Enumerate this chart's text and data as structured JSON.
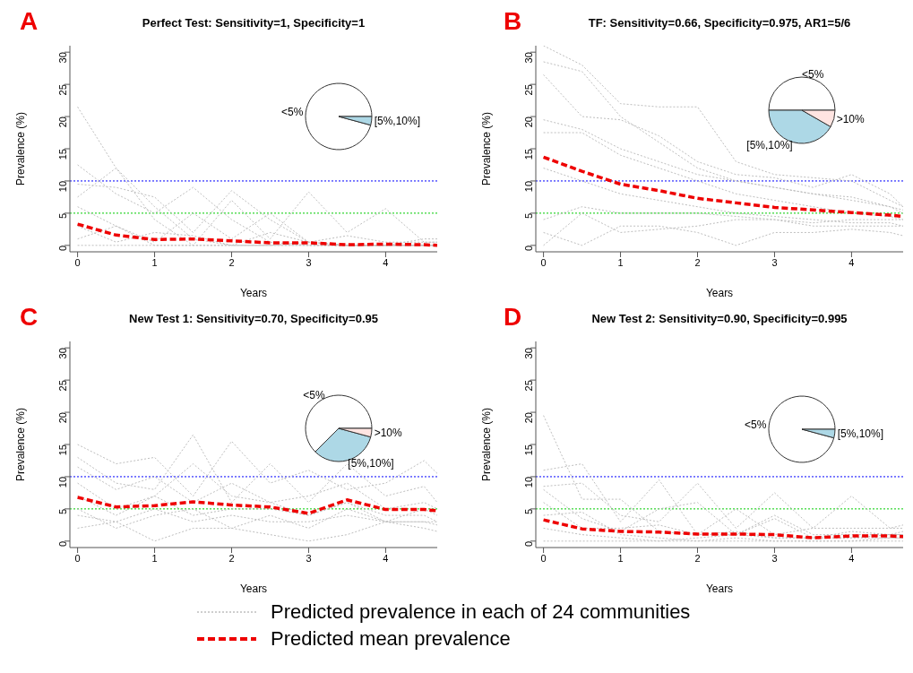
{
  "chart_data": [
    {
      "type": "line",
      "title": "Perfect Test: Sensitivity=1, Specificity=1",
      "annotations": [
        "A"
      ],
      "xlabel": "Years",
      "ylabel": "Prevalence (%)",
      "x": [
        0,
        0.5,
        1,
        1.5,
        2,
        2.5,
        3,
        3.5,
        4,
        4.5,
        4.67
      ],
      "xlim": [
        -0.1,
        4.67
      ],
      "xticks": [
        0,
        1,
        2,
        3,
        4
      ],
      "ylim": [
        -1,
        31
      ],
      "yticks": [
        0,
        5,
        10,
        15,
        20,
        25,
        30
      ],
      "marker": "none",
      "ref_lines": [
        {
          "axis": "y",
          "value": 10,
          "color": "#0000ff",
          "line_style": "dotted"
        },
        {
          "axis": "y",
          "value": 5,
          "color": "#00cc00",
          "line_style": "dotted"
        }
      ],
      "series": [
        {
          "color": "#bebebe",
          "line_style": "dotted",
          "values": [
            21.5,
            12,
            6,
            1,
            0,
            0,
            0,
            0,
            0,
            0,
            0
          ]
        },
        {
          "color": "#bebebe",
          "line_style": "dotted",
          "values": [
            12.5,
            8,
            5,
            9,
            4,
            0.5,
            0,
            0,
            0,
            0,
            0
          ]
        },
        {
          "color": "#bebebe",
          "line_style": "dotted",
          "values": [
            9.5,
            9,
            7.5,
            2,
            8.5,
            4,
            0.5,
            0,
            0,
            0,
            0
          ]
        },
        {
          "color": "#bebebe",
          "line_style": "dotted",
          "values": [
            7.5,
            12,
            4,
            0,
            7,
            1,
            8.3,
            2,
            5.7,
            0.5,
            0.5
          ]
        },
        {
          "color": "#bebebe",
          "line_style": "dotted",
          "values": [
            6,
            3,
            0.5,
            5,
            1,
            5,
            0.5,
            0,
            0,
            1,
            1
          ]
        },
        {
          "color": "#bebebe",
          "line_style": "dotted",
          "values": [
            1,
            3,
            0,
            0,
            0,
            2,
            0.5,
            1.5,
            0.5,
            0.5,
            0.5
          ]
        },
        {
          "color": "#bebebe",
          "line_style": "dotted",
          "values": [
            0,
            0,
            0,
            0,
            0,
            0,
            0,
            0,
            0,
            0,
            0
          ]
        },
        {
          "color": "#bebebe",
          "line_style": "dotted",
          "values": [
            3,
            0.5,
            2,
            1.5,
            0,
            0,
            0.5,
            0,
            0,
            0,
            0
          ]
        },
        {
          "color": "#ee0000",
          "line_style": "dashed",
          "values": [
            3.3,
            1.6,
            0.9,
            1,
            0.7,
            0.4,
            0.4,
            0.1,
            0.2,
            0.1,
            0
          ]
        }
      ]
    },
    {
      "type": "pie",
      "categories": [
        "<5%",
        "[5%,10%]"
      ],
      "values": [
        95.8,
        4.2
      ],
      "colors": [
        "#ffffff",
        "#add8e6"
      ]
    },
    {
      "type": "line",
      "title": "TF: Sensitivity=0.66, Specificity=0.975, AR1=5/6",
      "annotations": [
        "B"
      ],
      "xlabel": "Years",
      "ylabel": "Prevalence (%)",
      "x": [
        0,
        0.5,
        1,
        1.5,
        2,
        2.5,
        3,
        3.5,
        4,
        4.5,
        4.67
      ],
      "xlim": [
        -0.1,
        4.67
      ],
      "xticks": [
        0,
        1,
        2,
        3,
        4
      ],
      "ylim": [
        -1,
        31
      ],
      "yticks": [
        0,
        5,
        10,
        15,
        20,
        25,
        30
      ],
      "marker": "none",
      "ref_lines": [
        {
          "axis": "y",
          "value": 10,
          "color": "#0000ff",
          "line_style": "dotted"
        },
        {
          "axis": "y",
          "value": 5,
          "color": "#00cc00",
          "line_style": "dotted"
        }
      ],
      "series": [
        {
          "color": "#bebebe",
          "line_style": "dotted",
          "values": [
            31,
            28,
            22,
            21.5,
            21.5,
            13,
            11,
            10.5,
            10,
            7,
            6
          ]
        },
        {
          "color": "#bebebe",
          "line_style": "dotted",
          "values": [
            28.5,
            27,
            20,
            16,
            12,
            10,
            9,
            8,
            7.5,
            6,
            5.5
          ]
        },
        {
          "color": "#bebebe",
          "line_style": "dotted",
          "values": [
            26.5,
            20,
            19.5,
            17,
            13,
            11,
            10.5,
            9,
            11,
            8,
            6
          ]
        },
        {
          "color": "#bebebe",
          "line_style": "dotted",
          "values": [
            19.5,
            18,
            15,
            13,
            11,
            10,
            9,
            8,
            7,
            6,
            5
          ]
        },
        {
          "color": "#bebebe",
          "line_style": "dotted",
          "values": [
            17.5,
            17.5,
            14,
            12,
            10,
            8,
            7,
            6,
            5,
            4.5,
            4
          ]
        },
        {
          "color": "#bebebe",
          "line_style": "dotted",
          "values": [
            12,
            10,
            8,
            7,
            6,
            5,
            4.5,
            4,
            3.5,
            3.5,
            3
          ]
        },
        {
          "color": "#bebebe",
          "line_style": "dotted",
          "values": [
            4,
            6,
            5,
            5,
            5,
            4.5,
            4,
            3,
            3,
            3,
            3
          ]
        },
        {
          "color": "#bebebe",
          "line_style": "dotted",
          "values": [
            2,
            0,
            3,
            3,
            2,
            0,
            2,
            2,
            2.5,
            2,
            1.5
          ]
        },
        {
          "color": "#bebebe",
          "line_style": "dotted",
          "values": [
            0,
            5,
            2,
            2.5,
            3,
            4,
            4,
            3.5,
            4,
            4,
            4
          ]
        },
        {
          "color": "#ee0000",
          "line_style": "dashed",
          "values": [
            13.7,
            11.5,
            9.5,
            8.5,
            7.3,
            6.6,
            5.9,
            5.5,
            5.1,
            4.7,
            4.5
          ]
        }
      ]
    },
    {
      "type": "pie",
      "categories": [
        "<5%",
        "[5%,10%]",
        ">10%"
      ],
      "values": [
        50,
        41.7,
        8.3
      ],
      "colors": [
        "#ffffff",
        "#add8e6",
        "#ffe4e1"
      ]
    },
    {
      "type": "line",
      "title": "New Test 1: Sensitivity=0.70, Specificity=0.95",
      "annotations": [
        "C"
      ],
      "xlabel": "Years",
      "ylabel": "Prevalence (%)",
      "x": [
        0,
        0.5,
        1,
        1.5,
        2,
        2.5,
        3,
        3.5,
        4,
        4.5,
        4.67
      ],
      "xlim": [
        -0.1,
        4.67
      ],
      "xticks": [
        0,
        1,
        2,
        3,
        4
      ],
      "ylim": [
        -1,
        31
      ],
      "yticks": [
        0,
        5,
        10,
        15,
        20,
        25,
        30
      ],
      "marker": "none",
      "ref_lines": [
        {
          "axis": "y",
          "value": 10,
          "color": "#0000ff",
          "line_style": "dotted"
        },
        {
          "axis": "y",
          "value": 5,
          "color": "#00cc00",
          "line_style": "dotted"
        }
      ],
      "series": [
        {
          "color": "#bebebe",
          "line_style": "dotted",
          "values": [
            15,
            12,
            13,
            7,
            15.5,
            9,
            11,
            8,
            9,
            12.5,
            10.5
          ]
        },
        {
          "color": "#bebebe",
          "line_style": "dotted",
          "values": [
            13,
            9,
            8,
            16.5,
            6,
            12,
            6,
            12,
            7,
            8.5,
            6
          ]
        },
        {
          "color": "#bebebe",
          "line_style": "dotted",
          "values": [
            11.5,
            8,
            10,
            6,
            9,
            6,
            7,
            9,
            5,
            6,
            5
          ]
        },
        {
          "color": "#bebebe",
          "line_style": "dotted",
          "values": [
            9,
            5,
            7,
            12,
            7,
            6,
            4,
            6,
            3,
            5,
            4
          ]
        },
        {
          "color": "#bebebe",
          "line_style": "dotted",
          "values": [
            7,
            4,
            7,
            4,
            5,
            5,
            4,
            6,
            4,
            4,
            3
          ]
        },
        {
          "color": "#bebebe",
          "line_style": "dotted",
          "values": [
            4,
            3,
            5,
            3,
            4,
            3,
            3,
            4,
            3,
            3,
            2.5
          ]
        },
        {
          "color": "#bebebe",
          "line_style": "dotted",
          "values": [
            2,
            3,
            0,
            2,
            2,
            1,
            0,
            1,
            3,
            2,
            1.5
          ]
        },
        {
          "color": "#bebebe",
          "line_style": "dotted",
          "values": [
            5,
            2,
            4,
            5,
            2,
            4,
            2,
            5,
            3,
            3,
            3
          ]
        },
        {
          "color": "#ee0000",
          "line_style": "dashed",
          "values": [
            6.8,
            5.3,
            5.5,
            6.1,
            5.6,
            5.3,
            4.3,
            6.4,
            4.9,
            4.9,
            4.7
          ]
        }
      ]
    },
    {
      "type": "pie",
      "categories": [
        "<5%",
        "[5%,10%]",
        ">10%"
      ],
      "values": [
        62.5,
        33.3,
        4.2
      ],
      "colors": [
        "#ffffff",
        "#add8e6",
        "#ffe4e1"
      ]
    },
    {
      "type": "line",
      "title": "New Test 2: Sensitivity=0.90, Specificity=0.995",
      "annotations": [
        "D"
      ],
      "xlabel": "Years",
      "ylabel": "Prevalence (%)",
      "x": [
        0,
        0.5,
        1,
        1.5,
        2,
        2.5,
        3,
        3.5,
        4,
        4.5,
        4.67
      ],
      "xlim": [
        -0.1,
        4.67
      ],
      "xticks": [
        0,
        1,
        2,
        3,
        4
      ],
      "ylim": [
        -1,
        31
      ],
      "yticks": [
        0,
        5,
        10,
        15,
        20,
        25,
        30
      ],
      "marker": "none",
      "legend": "bottom",
      "ref_lines": [
        {
          "axis": "y",
          "value": 10,
          "color": "#0000ff",
          "line_style": "dotted"
        },
        {
          "axis": "y",
          "value": 5,
          "color": "#00cc00",
          "line_style": "dotted"
        }
      ],
      "series": [
        {
          "name": "Predicted prevalence in each of 24 communities",
          "color": "#bebebe",
          "line_style": "dotted",
          "values": [
            19.5,
            6.5,
            6.5,
            1.5,
            1,
            1.5,
            0.5,
            0.5,
            0.5,
            0.5,
            0.5
          ]
        },
        {
          "color": "#bebebe",
          "line_style": "dotted",
          "values": [
            11,
            12,
            3,
            9.5,
            1,
            5,
            1,
            2,
            7,
            2,
            2.5
          ]
        },
        {
          "color": "#bebebe",
          "line_style": "dotted",
          "values": [
            8.5,
            9,
            4,
            3,
            9,
            2,
            7.5,
            2,
            2,
            2,
            2
          ]
        },
        {
          "color": "#bebebe",
          "line_style": "dotted",
          "values": [
            8,
            3.5,
            1.5,
            5,
            6,
            1,
            4,
            1,
            1,
            1,
            1.5
          ]
        },
        {
          "color": "#bebebe",
          "line_style": "dotted",
          "values": [
            6,
            2,
            2,
            2.5,
            1,
            1,
            3.5,
            0.5,
            1.5,
            1,
            1
          ]
        },
        {
          "color": "#bebebe",
          "line_style": "dotted",
          "values": [
            2,
            1,
            0.5,
            0,
            0.5,
            1,
            0.5,
            0.5,
            0.5,
            1,
            1
          ]
        },
        {
          "color": "#bebebe",
          "line_style": "dotted",
          "values": [
            0,
            0,
            0,
            0,
            0,
            0,
            0,
            0,
            0,
            0,
            0
          ]
        },
        {
          "color": "#bebebe",
          "line_style": "dotted",
          "values": [
            4,
            4.5,
            1,
            0.5,
            0,
            0.5,
            0,
            0,
            0,
            0.5,
            0.5
          ]
        },
        {
          "name": "Predicted mean prevalence",
          "color": "#ee0000",
          "line_style": "dashed",
          "values": [
            3.3,
            1.9,
            1.5,
            1.4,
            1.1,
            1.1,
            1.0,
            0.5,
            0.8,
            0.8,
            0.7
          ]
        }
      ]
    },
    {
      "type": "pie",
      "categories": [
        "<5%",
        "[5%,10%]"
      ],
      "values": [
        95.8,
        4.2
      ],
      "colors": [
        "#ffffff",
        "#add8e6"
      ]
    }
  ]
}
